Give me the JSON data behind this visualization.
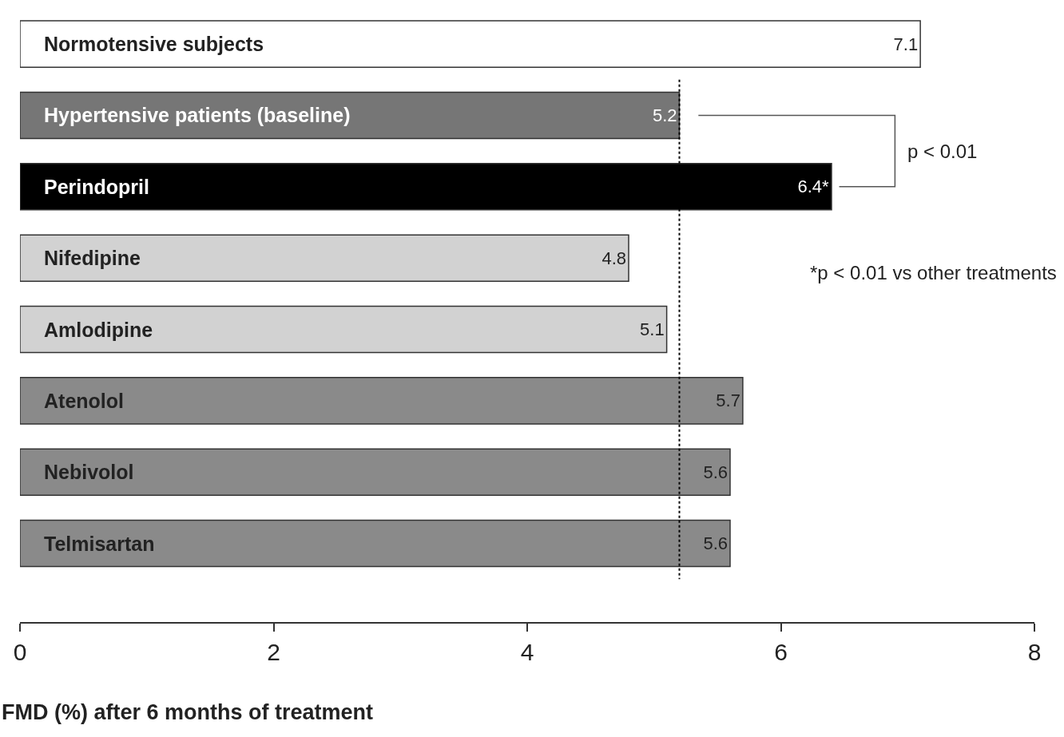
{
  "chart_data": {
    "type": "bar",
    "orientation": "horizontal",
    "categories": [
      "Normotensive subjects",
      "Hypertensive patients (baseline)",
      "Perindopril",
      "Nifedipine",
      "Amlodipine",
      "Atenolol",
      "Nebivolol",
      "Telmisartan"
    ],
    "values": [
      7.1,
      5.2,
      6.4,
      4.8,
      5.1,
      5.7,
      5.6,
      5.6
    ],
    "value_labels": [
      "7.1",
      "5.2",
      "6.4*",
      "4.8",
      "5.1",
      "5.7",
      "5.6",
      "5.6"
    ],
    "colors": [
      "#ffffff",
      "#767676",
      "#000000",
      "#d2d2d2",
      "#d2d2d2",
      "#8a8a8a",
      "#8a8a8a",
      "#8a8a8a"
    ],
    "xlim": [
      0,
      8
    ],
    "xticks": [
      0,
      2,
      4,
      6,
      8
    ],
    "xlabel": "FMD (%) after 6 months of treatment",
    "ref_lines": [
      {
        "axis": "x",
        "value": 5.2,
        "line_style": "dotted",
        "color": "#000000"
      }
    ],
    "annotations": [
      "p < 0.01",
      "*p < 0.01 vs other treatments"
    ],
    "grid": false
  }
}
